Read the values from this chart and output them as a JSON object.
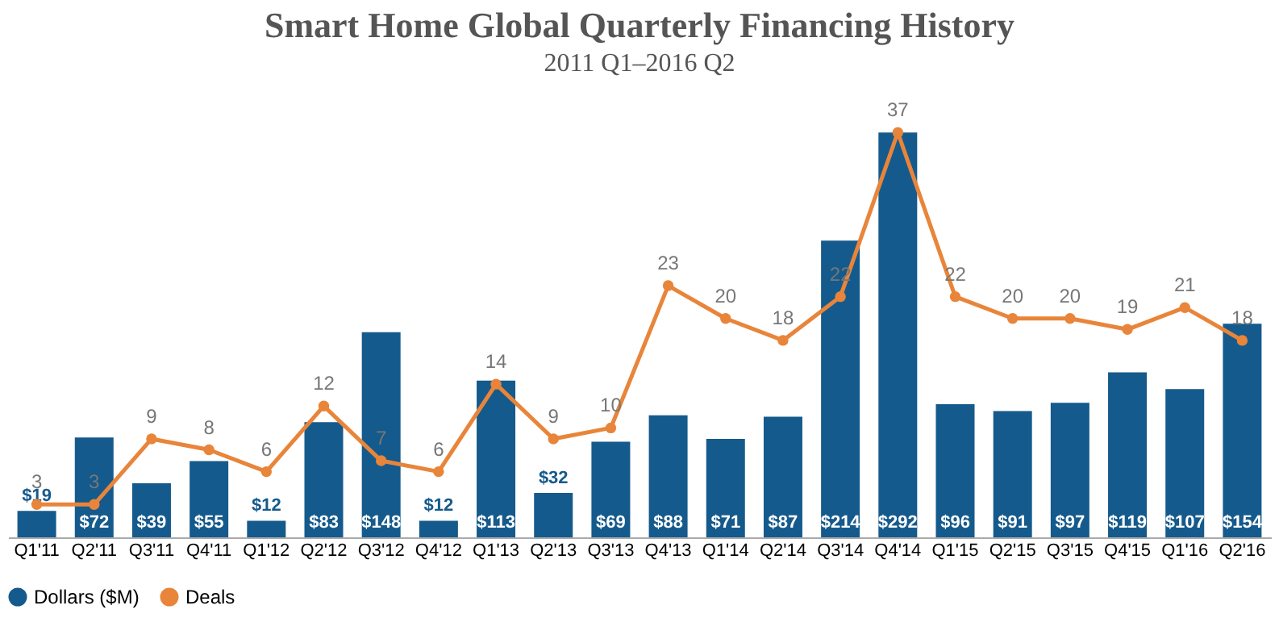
{
  "chart_data": {
    "type": "bar",
    "title": "Smart Home Global Quarterly Financing History",
    "subtitle": "2011 Q1–2016 Q2",
    "categories": [
      "Q1'11",
      "Q2'11",
      "Q3'11",
      "Q4'11",
      "Q1'12",
      "Q2'12",
      "Q3'12",
      "Q4'12",
      "Q1'13",
      "Q2'13",
      "Q3'13",
      "Q4'13",
      "Q1'14",
      "Q2'14",
      "Q3'14",
      "Q4'14",
      "Q1'15",
      "Q2'15",
      "Q3'15",
      "Q4'15",
      "Q1'16",
      "Q2'16"
    ],
    "series": [
      {
        "name": "Dollars ($M)",
        "color": "#155a8c",
        "values": [
          19,
          72,
          39,
          55,
          12,
          83,
          148,
          12,
          113,
          32,
          69,
          88,
          71,
          87,
          214,
          292,
          96,
          91,
          97,
          119,
          107,
          154
        ],
        "value_labels": [
          "$19",
          "$72",
          "$39",
          "$55",
          "$12",
          "$83",
          "$148",
          "$12",
          "$113",
          "$32",
          "$69",
          "$88",
          "$71",
          "$87",
          "$214",
          "$292",
          "$96",
          "$91",
          "$97",
          "$119",
          "$107",
          "$154"
        ]
      },
      {
        "name": "Deals",
        "type": "line",
        "axis": "y2",
        "color": "#e8853a",
        "marker": "circle",
        "values": [
          3,
          3,
          9,
          8,
          6,
          12,
          7,
          6,
          14,
          9,
          10,
          23,
          20,
          18,
          22,
          37,
          22,
          20,
          20,
          19,
          21,
          18
        ]
      }
    ],
    "data_labels": true,
    "grid": false,
    "legend": "bottom",
    "tick_labels": "x"
  }
}
